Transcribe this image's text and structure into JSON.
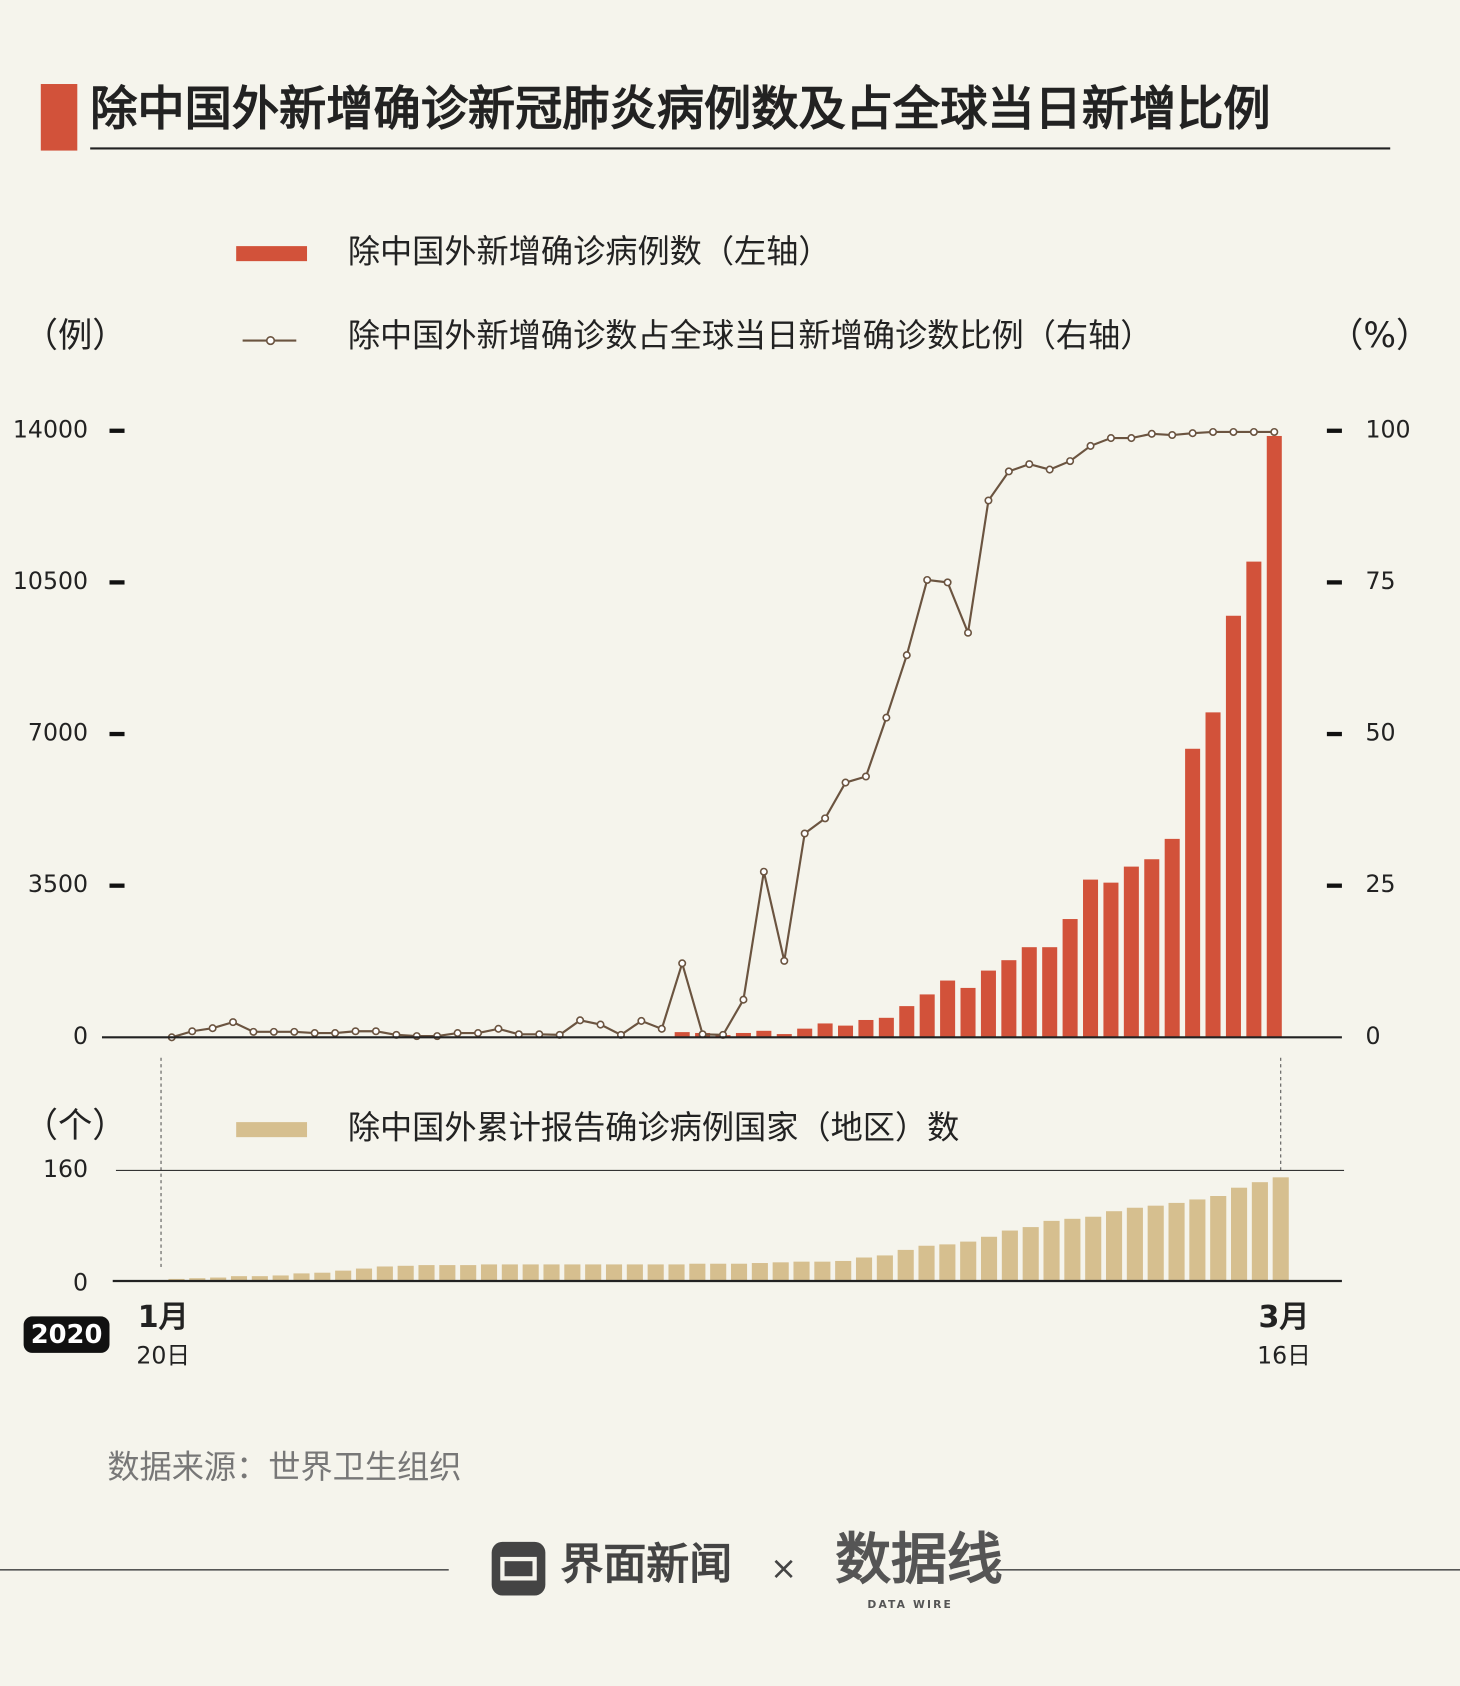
{
  "title": "除中国外新增确诊新冠肺炎病例数及占全球当日新增比例",
  "source": "数据来源：世界卫生组织",
  "year": "2020",
  "x_start_month": "1月",
  "x_start_day": "20日",
  "x_end_month": "3月",
  "x_end_day": "16日",
  "footer": {
    "brand": "界面新闻",
    "times": "×",
    "logo": "数据线",
    "logo_sub": "DATA WIRE"
  },
  "chart_data": [
    {
      "type": "combo",
      "y_unit": "（例）",
      "y2_unit": "（%）",
      "ylim": [
        0,
        14000
      ],
      "yticks": [
        0,
        3500,
        7000,
        10500,
        14000
      ],
      "y2lim": [
        0,
        100
      ],
      "y2ticks": [
        0,
        25,
        50,
        75,
        100
      ],
      "series": [
        {
          "name": "除中国外新增确诊病例数（左轴）",
          "type": "bar",
          "color": "#d2523a",
          "values": [
            5,
            10,
            8,
            12,
            15,
            10,
            12,
            14,
            16,
            10,
            18,
            12,
            10,
            8,
            12,
            10,
            14,
            12,
            10,
            8,
            15,
            12,
            10,
            14,
            12,
            120,
            100,
            50,
            100,
            150,
            75,
            200,
            320,
            270,
            400,
            450,
            720,
            990,
            1310,
            1140,
            1540,
            1780,
            2080,
            2080,
            2730,
            3640,
            3570,
            3940,
            4110,
            4580,
            6660,
            7500,
            9730,
            10980,
            13880
          ]
        },
        {
          "name": "除中国外新增确诊数占全球当日新增确诊数比例（右轴）",
          "type": "line",
          "axis": "y2",
          "color": "#6b5440",
          "values": [
            0,
            1,
            1.5,
            2.5,
            0.9,
            0.9,
            0.9,
            0.7,
            0.7,
            1,
            1,
            0.4,
            0.2,
            0.2,
            0.7,
            0.7,
            1.4,
            0.5,
            0.5,
            0.4,
            2.8,
            2.1,
            0.4,
            2.7,
            1.4,
            12.2,
            0.5,
            0.4,
            6.2,
            27.3,
            12.6,
            33.6,
            36.1,
            42,
            43,
            52.7,
            63,
            75.4,
            75,
            66.7,
            88.5,
            93.3,
            94.5,
            93.6,
            95,
            97.5,
            98.8,
            98.8,
            99.5,
            99.3,
            99.6,
            99.8,
            99.8,
            99.8,
            99.8
          ]
        }
      ]
    },
    {
      "type": "bar",
      "y_unit": "（个）",
      "ylim": [
        0,
        160
      ],
      "yticks": [
        0,
        160
      ],
      "grid": true,
      "series": [
        {
          "name": "除中国外累计报告确诊病例国家（地区）数",
          "color": "#d6bf8f",
          "values": [
            1,
            3,
            4,
            5,
            7,
            7,
            8,
            11,
            12,
            15,
            18,
            21,
            22,
            23,
            23,
            23,
            24,
            24,
            24,
            24,
            24,
            24,
            24,
            24,
            24,
            24,
            25,
            25,
            25,
            26,
            27,
            28,
            28,
            29,
            34,
            37,
            45,
            51,
            53,
            57,
            64,
            73,
            78,
            87,
            90,
            93,
            101,
            106,
            109,
            113,
            118,
            123,
            135,
            143,
            150
          ]
        }
      ]
    }
  ]
}
